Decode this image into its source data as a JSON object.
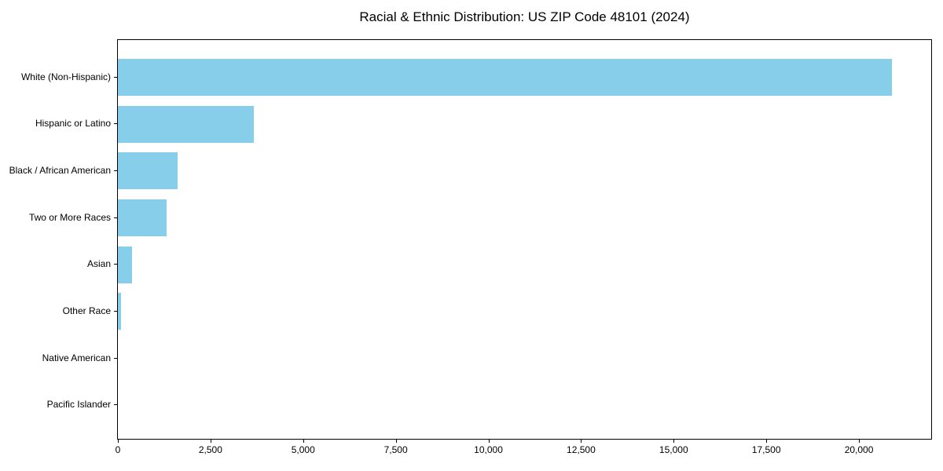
{
  "chart_data": {
    "type": "bar",
    "orientation": "horizontal",
    "title": "Racial & Ethnic Distribution: US ZIP Code 48101 (2024)",
    "xlabel": "",
    "ylabel": "",
    "categories": [
      "White (Non-Hispanic)",
      "Hispanic or Latino",
      "Black / African American",
      "Two or More Races",
      "Asian",
      "Other Race",
      "Native American",
      "Pacific Islander"
    ],
    "values": [
      20890,
      3660,
      1610,
      1310,
      380,
      90,
      0,
      0
    ],
    "xlim": [
      0,
      21950
    ],
    "x_ticks": [
      0,
      2500,
      5000,
      7500,
      10000,
      12500,
      15000,
      17500,
      20000
    ],
    "x_tick_labels": [
      "0",
      "2,500",
      "5,000",
      "7,500",
      "10,000",
      "12,500",
      "15,000",
      "17,500",
      "20,000"
    ],
    "bar_color": "#87CEEB",
    "grid": false,
    "legend": false
  }
}
